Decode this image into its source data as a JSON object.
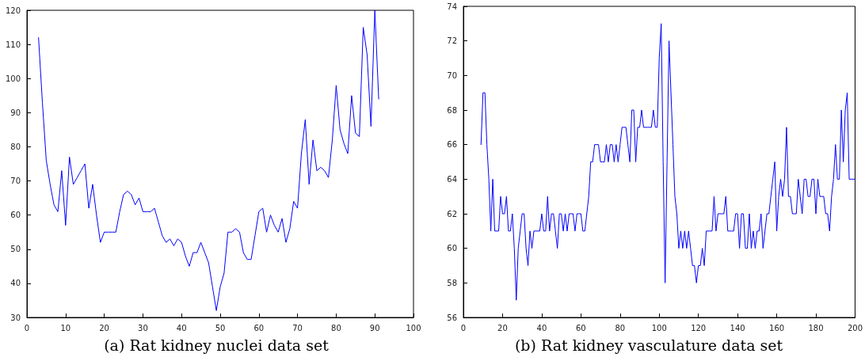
{
  "chart_data": [
    {
      "type": "line",
      "title": "(a) Rat kidney nuclei data set",
      "x": [
        3,
        4,
        5,
        6,
        7,
        8,
        9,
        10,
        11,
        12,
        13,
        14,
        15,
        16,
        17,
        18,
        19,
        20,
        21,
        22,
        23,
        24,
        25,
        26,
        27,
        28,
        29,
        30,
        31,
        32,
        33,
        34,
        35,
        36,
        37,
        38,
        39,
        40,
        41,
        42,
        43,
        44,
        45,
        46,
        47,
        48,
        49,
        50,
        51,
        52,
        53,
        54,
        55,
        56,
        57,
        58,
        59,
        60,
        61,
        62,
        63,
        64,
        65,
        66,
        67,
        68,
        69,
        70,
        71,
        72,
        73,
        74,
        75,
        76,
        77,
        78,
        79,
        80,
        81,
        82,
        83,
        84,
        85,
        86,
        87,
        88,
        89,
        90,
        91
      ],
      "series": [
        {
          "color": "#0000ff",
          "values": [
            112,
            93,
            76,
            69,
            63,
            61,
            73,
            57,
            77,
            69,
            71,
            73,
            75,
            62,
            69,
            60,
            52,
            55,
            55,
            55,
            55,
            61,
            66,
            67,
            66,
            63,
            65,
            61,
            61,
            61,
            62,
            58,
            54,
            52,
            53,
            51,
            53,
            52,
            48,
            45,
            49,
            49,
            52,
            49,
            46,
            39,
            32,
            39,
            43,
            55,
            55,
            56,
            55,
            49,
            47,
            47,
            54,
            61,
            62,
            55,
            60,
            57,
            55,
            59,
            52,
            56,
            64,
            62,
            78,
            88,
            69,
            82,
            73,
            74,
            73,
            71,
            82,
            98,
            85,
            81,
            78,
            95,
            84,
            83,
            115,
            107,
            86,
            120,
            94
          ]
        }
      ],
      "xlim": [
        0,
        100
      ],
      "xticks": [
        0,
        10,
        20,
        30,
        40,
        50,
        60,
        70,
        80,
        90,
        100
      ],
      "ylim": [
        30,
        120
      ],
      "yticks": [
        30,
        40,
        50,
        60,
        70,
        80,
        90,
        100,
        110,
        120
      ],
      "grid": false,
      "marker": "none",
      "line_style": "solid"
    },
    {
      "type": "line",
      "title": "(b) Rat kidney vasculature data set",
      "x": [
        9,
        10,
        11,
        12,
        13,
        14,
        15,
        16,
        17,
        18,
        19,
        20,
        21,
        22,
        23,
        24,
        25,
        26,
        27,
        28,
        29,
        30,
        31,
        32,
        33,
        34,
        35,
        36,
        37,
        38,
        39,
        40,
        41,
        42,
        43,
        44,
        45,
        46,
        47,
        48,
        49,
        50,
        51,
        52,
        53,
        54,
        55,
        56,
        57,
        58,
        59,
        60,
        61,
        62,
        63,
        64,
        65,
        66,
        67,
        68,
        69,
        70,
        71,
        72,
        73,
        74,
        75,
        76,
        77,
        78,
        79,
        80,
        81,
        82,
        83,
        84,
        85,
        86,
        87,
        88,
        89,
        90,
        91,
        92,
        93,
        94,
        95,
        96,
        97,
        98,
        99,
        100,
        101,
        102,
        103,
        104,
        105,
        106,
        107,
        108,
        109,
        110,
        111,
        112,
        113,
        114,
        115,
        116,
        117,
        118,
        119,
        120,
        121,
        122,
        123,
        124,
        125,
        126,
        127,
        128,
        129,
        130,
        131,
        132,
        133,
        134,
        135,
        136,
        137,
        138,
        139,
        140,
        141,
        142,
        143,
        144,
        145,
        146,
        147,
        148,
        149,
        150,
        151,
        152,
        153,
        154,
        155,
        156,
        157,
        158,
        159,
        160,
        161,
        162,
        163,
        164,
        165,
        166,
        167,
        168,
        169,
        170,
        171,
        172,
        173,
        174,
        175,
        176,
        177,
        178,
        179,
        180,
        181,
        182,
        183,
        184,
        185,
        186,
        187,
        188,
        189,
        190,
        191,
        192,
        193,
        194,
        195,
        196,
        197,
        198,
        199,
        200
      ],
      "series": [
        {
          "color": "#0000ff",
          "values": [
            66,
            69,
            69,
            66,
            64,
            61,
            64,
            61,
            61,
            61,
            63,
            62,
            62,
            63,
            61,
            61,
            62,
            60,
            57,
            60,
            61,
            62,
            62,
            60,
            59,
            61,
            60,
            61,
            61,
            61,
            61,
            62,
            61,
            61,
            63,
            61,
            62,
            62,
            61,
            60,
            62,
            62,
            61,
            62,
            61,
            62,
            62,
            62,
            61,
            62,
            62,
            62,
            61,
            61,
            62,
            63,
            65,
            65,
            66,
            66,
            66,
            65,
            65,
            65,
            66,
            65,
            66,
            66,
            65,
            66,
            65,
            66,
            67,
            67,
            67,
            66,
            65,
            68,
            68,
            65,
            67,
            67,
            68,
            67,
            67,
            67,
            67,
            67,
            68,
            67,
            67,
            71,
            73,
            65,
            58,
            65,
            72,
            69,
            66,
            63,
            62,
            60,
            61,
            60,
            61,
            60,
            61,
            60,
            59,
            59,
            58,
            59,
            59,
            60,
            59,
            61,
            61,
            61,
            61,
            63,
            61,
            62,
            62,
            62,
            62,
            63,
            61,
            61,
            61,
            61,
            62,
            62,
            60,
            62,
            62,
            60,
            60,
            62,
            60,
            61,
            60,
            61,
            61,
            62,
            60,
            61,
            62,
            62,
            63,
            64,
            65,
            61,
            63,
            64,
            63,
            64,
            67,
            63,
            63,
            62,
            62,
            62,
            64,
            63,
            62,
            64,
            64,
            63,
            63,
            64,
            64,
            62,
            64,
            63,
            63,
            63,
            62,
            62,
            61,
            63,
            64,
            66,
            64,
            64,
            68,
            65,
            68,
            69,
            64,
            64,
            64,
            64
          ]
        }
      ],
      "xlim": [
        0,
        200
      ],
      "xticks": [
        0,
        20,
        40,
        60,
        80,
        100,
        120,
        140,
        160,
        180,
        200
      ],
      "ylim": [
        56,
        74
      ],
      "yticks": [
        56,
        58,
        60,
        62,
        64,
        66,
        68,
        70,
        72,
        74
      ],
      "grid": false,
      "marker": "none",
      "line_style": "solid"
    }
  ]
}
